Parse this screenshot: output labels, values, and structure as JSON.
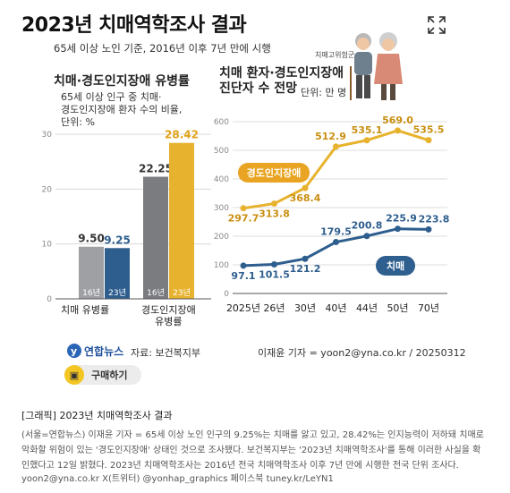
{
  "title": "2023년 치매역학조사 결과",
  "subtitle": "65세 이상 노인 기준, 2016년 이후 7년 만에 시행",
  "left_panel": {
    "title": "치매·경도인지장애 유병률",
    "note_lines": [
      "65세 이상 인구 중 치매·",
      "경도인지장애 환자 수의 비율,",
      "단위: %"
    ]
  },
  "right_panel": {
    "title_lines": [
      "치매 환자·경도인지장애",
      "진단자 수 전망"
    ],
    "unit": "단위: 만 명",
    "image_caption": "치매고위험군"
  },
  "colors": {
    "gray_bar": "#9fa0a4",
    "blue": "#2e5e8e",
    "gold": "#e7b22d",
    "dark_gray_bar": "#7b7c80",
    "pill_blue": "#2f5f8f",
    "pill_gold": "#e8a422"
  },
  "chart_data": [
    {
      "type": "bar",
      "categories": [
        "치매 유병률",
        "경도인지장애 유병률"
      ],
      "category_labels": [
        [
          "치매 유병률"
        ],
        [
          "경도인지장애",
          "유병률"
        ]
      ],
      "series": [
        {
          "name": "16년",
          "values": [
            9.5,
            22.25
          ]
        },
        {
          "name": "23년",
          "values": [
            9.25,
            28.42
          ]
        }
      ],
      "value_labels": [
        [
          "9.50",
          "22.25"
        ],
        [
          "9.25",
          "28.42"
        ]
      ],
      "bar_labels": [
        "16년",
        "23년"
      ],
      "ylim": [
        0,
        30
      ],
      "yticks": [
        0,
        10,
        20,
        30
      ],
      "grid": true
    },
    {
      "type": "line",
      "x": [
        "2025년",
        "26년",
        "30년",
        "40년",
        "44년",
        "50년",
        "70년"
      ],
      "series": [
        {
          "name": "경도인지장애",
          "values": [
            297.7,
            313.8,
            368.4,
            512.9,
            535.1,
            569.0,
            535.5
          ],
          "labels": [
            "297.7",
            "313.8",
            "368.4",
            "512.9",
            "535.1",
            "569.0",
            "535.5"
          ]
        },
        {
          "name": "치매",
          "values": [
            97.1,
            101.5,
            121.2,
            179.5,
            200.8,
            225.9,
            223.8
          ],
          "labels": [
            "97.1",
            "101.5",
            "121.2",
            "179.5",
            "200.8",
            "225.9",
            "223.8"
          ]
        }
      ],
      "ylim": [
        0,
        600
      ],
      "yticks": [
        0,
        100,
        200,
        300,
        400,
        500,
        600
      ],
      "grid": true
    }
  ],
  "footer": {
    "logo": "연합뉴스",
    "source": "자료: 보건복지부",
    "byline": "이재윤 기자 = yoon2@yna.co.kr / 20250312",
    "buy_label": "구매하기"
  },
  "caption": {
    "title": "[그래픽] 2023년 치매역학조사 결과",
    "body": "(서울=연합뉴스) 이재윤 기자 = 65세 이상 노인 인구의 9.25%는 치매를 앓고 있고, 28.42%는 인지능력이 저하돼 치매로 악화할 위험이 있는 '경도인지장애' 상태인 것으로 조사됐다. 보건복지부는 '2023년 치매역학조사'를 통해 이러한 사실을 확인했다고 12일 밝혔다. 2023년 치매역학조사는 2016년 전국 치매역학조사 이후 7년 만에 시행한 전국 단위 조사다.",
    "credit": "yoon2@yna.co.kr X(트위터) @yonhap_graphics 페이스북 tuney.kr/LeYN1"
  }
}
